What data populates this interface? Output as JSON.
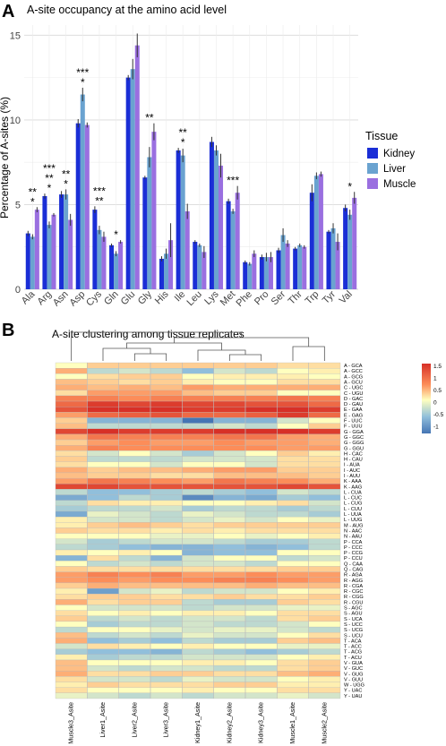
{
  "chart_data": [
    {
      "type": "bar",
      "panel_label": "A",
      "title": "A-site occupancy at the amino acid level",
      "xlabel": "",
      "ylabel": "Percentage of A-sites (%)",
      "ylim": [
        0,
        15.6
      ],
      "yticks": [
        0,
        5,
        10,
        15
      ],
      "yticklabels": [
        "0",
        "5",
        "10",
        "15"
      ],
      "grid": true,
      "legend_title": "Tissue",
      "legend_position": "right",
      "categories": [
        "Ala",
        "Arg",
        "Asn",
        "Asp",
        "Cys",
        "Gln",
        "Glu",
        "Gly",
        "His",
        "Ile",
        "Leu",
        "Lys",
        "Met",
        "Phe",
        "Pro",
        "Ser",
        "Thr",
        "Trp",
        "Tyr",
        "Val"
      ],
      "series": [
        {
          "name": "Kidney",
          "color": "#1a2ed6",
          "values": [
            3.3,
            5.5,
            5.6,
            9.8,
            4.7,
            2.6,
            12.5,
            6.6,
            1.8,
            8.2,
            2.8,
            8.7,
            5.2,
            1.6,
            1.9,
            2.3,
            2.4,
            5.7,
            3.4,
            4.8
          ],
          "errors": [
            0.15,
            0.15,
            0.2,
            0.25,
            0.2,
            0.1,
            0.15,
            0.1,
            0.15,
            0.15,
            0.1,
            0.3,
            0.15,
            0.1,
            0.15,
            0.15,
            0.1,
            0.5,
            0.1,
            0.2
          ]
        },
        {
          "name": "Liver",
          "color": "#6aa3d0",
          "values": [
            3.1,
            3.8,
            5.6,
            11.5,
            3.5,
            2.1,
            13.0,
            7.8,
            2.1,
            7.9,
            2.6,
            8.2,
            4.6,
            1.5,
            1.9,
            3.2,
            2.6,
            6.7,
            3.6,
            4.4
          ],
          "errors": [
            0.15,
            0.2,
            0.3,
            0.4,
            0.25,
            0.15,
            0.6,
            0.6,
            0.3,
            0.4,
            0.1,
            0.3,
            0.15,
            0.1,
            0.25,
            0.4,
            0.1,
            0.2,
            0.3,
            0.3
          ]
        },
        {
          "name": "Muscle",
          "color": "#9a6fe0",
          "values": [
            4.7,
            4.4,
            4.1,
            9.7,
            3.1,
            2.8,
            14.4,
            9.3,
            2.9,
            4.6,
            2.2,
            7.3,
            5.7,
            2.1,
            1.9,
            2.7,
            2.5,
            6.8,
            2.8,
            5.4
          ],
          "errors": [
            0.15,
            0.1,
            0.35,
            0.15,
            0.3,
            0.1,
            0.7,
            0.5,
            1.0,
            0.45,
            0.35,
            0.7,
            0.4,
            0.2,
            0.3,
            0.2,
            0.1,
            0.15,
            0.5,
            0.35
          ]
        }
      ],
      "significance": [
        {
          "category": "Ala",
          "lines": [
            "**",
            "*"
          ]
        },
        {
          "category": "Arg",
          "lines": [
            "***",
            "**",
            "*"
          ]
        },
        {
          "category": "Asn",
          "lines": [
            "**",
            "*"
          ]
        },
        {
          "category": "Asp",
          "lines": [
            "***",
            "*"
          ]
        },
        {
          "category": "Cys",
          "lines": [
            "***",
            "**"
          ]
        },
        {
          "category": "Gln",
          "lines": [
            "*"
          ]
        },
        {
          "category": "Gly",
          "lines": [
            "**"
          ]
        },
        {
          "category": "Ile",
          "lines": [
            "**",
            "*"
          ]
        },
        {
          "category": "Met",
          "lines": [
            "***"
          ]
        },
        {
          "category": "Val",
          "lines": [
            "*"
          ]
        }
      ]
    },
    {
      "type": "heatmap",
      "panel_label": "B",
      "title": "A-site clustering among tissue replicates",
      "columns": [
        "Muscle3_Asite",
        "Liver1_Asite",
        "Liver2_Asite",
        "Liver3_Asite",
        "Kidney1_Asite",
        "Kidney2_Asite",
        "Kidney3_Asite",
        "Muscle1_Asite",
        "Muscle2_Asite"
      ],
      "rows": [
        "A - GCA",
        "A - GCC",
        "A - GCG",
        "A - GCU",
        "C - UGC",
        "C - UGU",
        "D - GAC",
        "D - GAU",
        "E - GAA",
        "E - GAG",
        "F - UUC",
        "F - UUU",
        "G - GGA",
        "G - GGC",
        "G - GGG",
        "G - GGU",
        "H - CAC",
        "H - CAU",
        "I - AUA",
        "I - AUC",
        "I - AUU",
        "K - AAA",
        "K - AAG",
        "L - CUA",
        "L - CUC",
        "L - CUG",
        "L - CUU",
        "L - UUA",
        "L - UUG",
        "M - AUG",
        "N - AAC",
        "N - AAU",
        "P - CCA",
        "P - CCC",
        "P - CCG",
        "P - CCU",
        "Q - CAA",
        "Q - CAG",
        "R - AGA",
        "R - AGG",
        "R - CGA",
        "R - CGC",
        "R - CGG",
        "R - CGU",
        "S - AGC",
        "S - AGU",
        "S - UCA",
        "S - UCC",
        "S - UCG",
        "S - UCU",
        "T - ACA",
        "T - ACC",
        "T - ACG",
        "T - ACU",
        "V - GUA",
        "V - GUC",
        "V - GUG",
        "V - GUU",
        "W - UGG",
        "Y - UAC",
        "Y - UAU"
      ],
      "values": [
        [
          0.0,
          0.3,
          0.3,
          0.3,
          0.3,
          0.3,
          0.3,
          0.2,
          0.2
        ],
        [
          0.5,
          -0.3,
          -0.2,
          -0.3,
          -0.5,
          -0.2,
          -0.3,
          0.0,
          0.1
        ],
        [
          0.0,
          0.2,
          0.3,
          0.3,
          0.0,
          0.1,
          0.1,
          0.1,
          0.0
        ],
        [
          0.4,
          0.3,
          0.2,
          0.3,
          0.1,
          0.0,
          0.0,
          0.2,
          0.2
        ],
        [
          0.5,
          0.4,
          0.5,
          0.4,
          0.6,
          0.5,
          0.5,
          0.5,
          0.5
        ],
        [
          0.2,
          0.6,
          0.6,
          0.6,
          0.4,
          0.3,
          0.3,
          0.0,
          0.0
        ],
        [
          0.8,
          0.8,
          0.7,
          0.8,
          0.8,
          0.8,
          0.8,
          0.9,
          0.8
        ],
        [
          1.0,
          1.4,
          1.3,
          1.4,
          1.3,
          1.3,
          1.2,
          1.2,
          1.0
        ],
        [
          1.2,
          1.5,
          1.6,
          1.6,
          1.4,
          1.4,
          1.5,
          1.6,
          1.4
        ],
        [
          0.6,
          1.0,
          1.1,
          1.2,
          1.0,
          1.0,
          1.1,
          1.4,
          1.0
        ],
        [
          0.3,
          -0.6,
          -0.6,
          -0.6,
          -1.2,
          -0.6,
          -0.6,
          -0.2,
          0.0
        ],
        [
          0.4,
          -0.3,
          -0.3,
          -0.3,
          -0.3,
          -0.2,
          -0.3,
          0.0,
          0.3
        ],
        [
          1.3,
          1.5,
          1.4,
          1.4,
          1.4,
          1.5,
          1.5,
          1.5,
          1.4
        ],
        [
          0.5,
          0.9,
          0.8,
          0.8,
          0.8,
          0.9,
          0.9,
          0.6,
          0.5
        ],
        [
          0.3,
          0.6,
          0.7,
          0.6,
          0.6,
          0.7,
          0.6,
          0.6,
          0.5
        ],
        [
          0.5,
          0.8,
          0.7,
          0.7,
          0.7,
          0.7,
          0.7,
          0.6,
          0.6
        ],
        [
          0.2,
          -0.2,
          0.0,
          -0.2,
          -0.4,
          -0.2,
          0.0,
          0.3,
          0.1
        ],
        [
          0.3,
          -0.3,
          -0.3,
          -0.3,
          -0.2,
          -0.2,
          -0.2,
          0.2,
          0.2
        ],
        [
          0.2,
          0.0,
          0.0,
          -0.2,
          0.0,
          0.0,
          -0.2,
          0.2,
          0.2
        ],
        [
          0.5,
          0.3,
          0.4,
          0.4,
          0.5,
          0.6,
          0.6,
          0.3,
          0.3
        ],
        [
          0.4,
          0.3,
          0.3,
          0.2,
          0.2,
          0.4,
          0.4,
          0.4,
          0.3
        ],
        [
          0.6,
          0.9,
          0.8,
          0.7,
          0.6,
          0.9,
          0.8,
          0.7,
          0.5
        ],
        [
          1.3,
          1.3,
          1.2,
          1.2,
          1.2,
          1.2,
          1.2,
          1.3,
          1.2
        ],
        [
          -0.3,
          -0.5,
          -0.5,
          -0.4,
          -0.3,
          -0.4,
          -0.5,
          -0.2,
          -0.3
        ],
        [
          -0.7,
          -0.5,
          -0.3,
          -0.4,
          -1.0,
          -0.6,
          -0.7,
          -0.4,
          -0.5
        ],
        [
          -0.3,
          0.2,
          0.1,
          0.1,
          0.0,
          0.0,
          0.1,
          0.2,
          -0.2
        ],
        [
          -0.4,
          -0.3,
          -0.3,
          -0.2,
          -0.4,
          -0.3,
          -0.3,
          -0.4,
          -0.3
        ],
        [
          -0.7,
          -0.1,
          -0.2,
          -0.3,
          -0.1,
          -0.2,
          -0.3,
          -0.3,
          -0.4
        ],
        [
          0.1,
          -0.2,
          -0.2,
          -0.3,
          -0.2,
          -0.1,
          -0.2,
          0.0,
          -0.1
        ],
        [
          0.1,
          0.3,
          0.4,
          0.3,
          0.2,
          0.3,
          0.3,
          0.3,
          0.3
        ],
        [
          0.3,
          0.2,
          0.2,
          0.1,
          0.2,
          0.1,
          0.2,
          0.2,
          0.2
        ],
        [
          0.0,
          0.0,
          0.0,
          -0.1,
          -0.1,
          0.0,
          -0.1,
          0.0,
          0.1
        ],
        [
          -0.2,
          -0.4,
          -0.3,
          -0.2,
          -0.2,
          -0.3,
          -0.4,
          -0.4,
          -0.3
        ],
        [
          -0.3,
          -0.4,
          -0.5,
          -0.6,
          -0.6,
          -0.5,
          -0.6,
          -0.5,
          -0.3
        ],
        [
          0.1,
          0.0,
          0.1,
          0.0,
          -0.6,
          -0.5,
          -0.5,
          0.0,
          0.0
        ],
        [
          -0.6,
          0.2,
          -0.3,
          -0.6,
          -0.2,
          0.0,
          0.0,
          -0.3,
          -0.2
        ],
        [
          0.0,
          -0.3,
          -0.2,
          -0.3,
          -0.2,
          -0.2,
          -0.3,
          0.0,
          0.0
        ],
        [
          0.3,
          0.2,
          0.2,
          0.2,
          0.2,
          0.2,
          0.2,
          0.3,
          0.3
        ],
        [
          0.6,
          0.8,
          0.7,
          0.8,
          0.6,
          0.6,
          0.7,
          0.6,
          0.6
        ],
        [
          0.6,
          0.7,
          0.6,
          0.7,
          0.7,
          0.8,
          0.8,
          0.7,
          0.6
        ],
        [
          0.3,
          0.5,
          0.4,
          0.4,
          0.4,
          0.4,
          0.5,
          0.4,
          0.4
        ],
        [
          0.1,
          -0.8,
          -0.2,
          -0.1,
          -0.3,
          -0.2,
          -0.2,
          0.0,
          0.1
        ],
        [
          0.2,
          0.3,
          0.3,
          0.2,
          0.2,
          0.3,
          0.2,
          0.2,
          0.3
        ],
        [
          0.5,
          0.2,
          0.3,
          0.3,
          -0.3,
          -0.4,
          -0.4,
          0.3,
          0.2
        ],
        [
          0.0,
          -0.2,
          -0.2,
          -0.2,
          -0.3,
          -0.2,
          -0.2,
          -0.1,
          -0.1
        ],
        [
          0.2,
          0.0,
          0.1,
          0.0,
          0.1,
          0.1,
          0.0,
          0.2,
          0.2
        ],
        [
          0.3,
          -0.3,
          -0.2,
          -0.3,
          -0.2,
          -0.2,
          -0.3,
          0.2,
          0.3
        ],
        [
          0.0,
          -0.4,
          -0.3,
          -0.3,
          -0.2,
          -0.3,
          -0.3,
          -0.2,
          0.0
        ],
        [
          -0.3,
          0.0,
          0.0,
          -0.1,
          -0.2,
          -0.1,
          -0.1,
          -0.2,
          -0.3
        ],
        [
          0.4,
          -0.3,
          -0.2,
          -0.3,
          -0.1,
          -0.2,
          -0.2,
          0.0,
          0.2
        ],
        [
          0.5,
          -0.5,
          -0.4,
          -0.5,
          -0.3,
          -0.4,
          -0.4,
          0.3,
          0.4
        ],
        [
          -0.2,
          0.2,
          0.1,
          0.0,
          0.1,
          0.0,
          0.0,
          -0.1,
          -0.1
        ],
        [
          -0.4,
          -0.5,
          -0.5,
          -0.6,
          -0.3,
          -0.4,
          -0.5,
          -0.4,
          -0.3
        ],
        [
          0.1,
          -0.4,
          -0.3,
          -0.3,
          -0.2,
          -0.2,
          -0.2,
          0.0,
          0.1
        ],
        [
          0.4,
          0.0,
          0.0,
          0.0,
          0.1,
          0.1,
          0.0,
          0.2,
          0.3
        ],
        [
          0.4,
          -0.2,
          -0.3,
          -0.2,
          -0.2,
          -0.3,
          -0.3,
          0.2,
          0.3
        ],
        [
          0.5,
          0.2,
          0.2,
          0.3,
          0.3,
          0.2,
          0.2,
          0.4,
          0.5
        ],
        [
          0.2,
          -0.2,
          -0.2,
          -0.3,
          -0.1,
          -0.2,
          -0.2,
          0.0,
          0.1
        ],
        [
          0.1,
          0.3,
          0.2,
          0.2,
          0.2,
          0.3,
          0.3,
          0.1,
          0.1
        ],
        [
          0.2,
          0.0,
          0.0,
          0.0,
          0.1,
          0.0,
          0.0,
          0.2,
          0.2
        ],
        [
          -0.1,
          -0.2,
          -0.3,
          -0.2,
          -0.3,
          -0.2,
          -0.2,
          -0.1,
          -0.2
        ]
      ],
      "legend_ticks": [
        1.5,
        1,
        0.5,
        0,
        -0.5,
        -1
      ],
      "legend_ticklabels": [
        "1.5",
        "1",
        "0.5",
        "0",
        "-0.5",
        "-1"
      ],
      "color_scale": {
        "low": "#4575b4",
        "mid": "#ffffbf",
        "high": "#d73027"
      }
    }
  ]
}
